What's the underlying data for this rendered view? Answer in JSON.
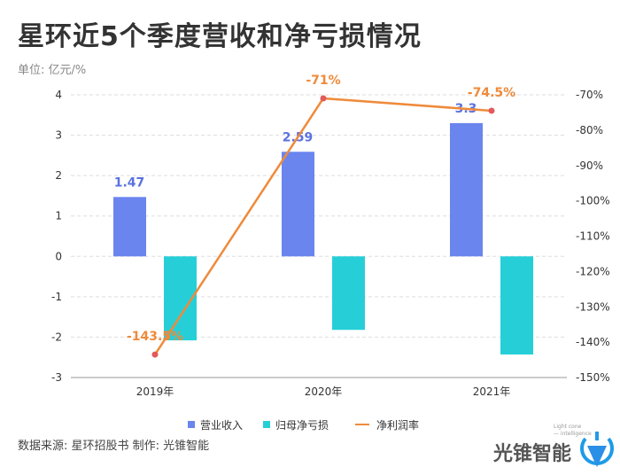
{
  "title": "星环近5个季度营收和净亏损情况",
  "unit": "单位: 亿元/%",
  "source": "数据来源: 星环招股书 制作: 光锥智能",
  "logo": {
    "text": "光锥智能",
    "subtext": "Light cone intelligence"
  },
  "chart_data": {
    "type": "bar",
    "categories": [
      "2019年",
      "2020年",
      "2021年"
    ],
    "series": [
      {
        "name": "营业收入",
        "type": "bar",
        "axis": "left",
        "color": "#6b85ee",
        "values": [
          1.47,
          2.59,
          3.3
        ],
        "labels": [
          "1.47",
          "2.59",
          "3.3"
        ]
      },
      {
        "name": "归母净亏损",
        "type": "bar",
        "axis": "left",
        "color": "#26cfd8",
        "values": [
          -2.08,
          -1.82,
          -2.43
        ]
      },
      {
        "name": "净利润率",
        "type": "line",
        "axis": "right",
        "color": "#ef8a3a",
        "values": [
          -143.5,
          -71,
          -74.5
        ],
        "labels": [
          "-143.5%",
          "-71%",
          "-74.5%"
        ]
      }
    ],
    "yleft": {
      "lim": [
        -3,
        4
      ],
      "ticks": [
        "-3",
        "-2",
        "-1",
        "0",
        "1",
        "2",
        "3",
        "4"
      ]
    },
    "yright": {
      "lim": [
        -150,
        -70
      ],
      "ticks": [
        "-150%",
        "-140%",
        "-130%",
        "-120%",
        "-110%",
        "-100%",
        "-90%",
        "-80%",
        "-70%"
      ]
    },
    "grid": true,
    "legend": "bottom"
  }
}
